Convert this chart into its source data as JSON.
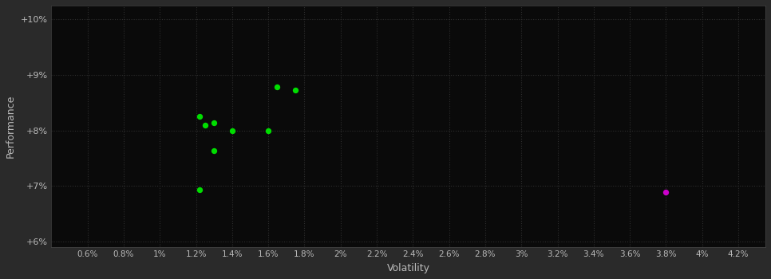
{
  "xlabel": "Volatility",
  "ylabel": "Performance",
  "background_color": "#2a2a2a",
  "plot_bg_color": "#0a0a0a",
  "text_color": "#bbbbbb",
  "green_points": [
    [
      0.0122,
      0.0825
    ],
    [
      0.0125,
      0.081
    ],
    [
      0.013,
      0.0813
    ],
    [
      0.014,
      0.08
    ],
    [
      0.016,
      0.08
    ],
    [
      0.013,
      0.0763
    ],
    [
      0.0122,
      0.0693
    ],
    [
      0.0165,
      0.0878
    ],
    [
      0.0175,
      0.0872
    ]
  ],
  "magenta_points": [
    [
      0.038,
      0.0688
    ]
  ],
  "xlim": [
    0.004,
    0.0435
  ],
  "ylim": [
    0.059,
    0.1025
  ],
  "xticks": [
    0.006,
    0.008,
    0.01,
    0.012,
    0.014,
    0.016,
    0.018,
    0.02,
    0.022,
    0.024,
    0.026,
    0.028,
    0.03,
    0.032,
    0.034,
    0.036,
    0.038,
    0.04,
    0.042
  ],
  "yticks": [
    0.06,
    0.07,
    0.08,
    0.09,
    0.1
  ],
  "marker_size": 28
}
